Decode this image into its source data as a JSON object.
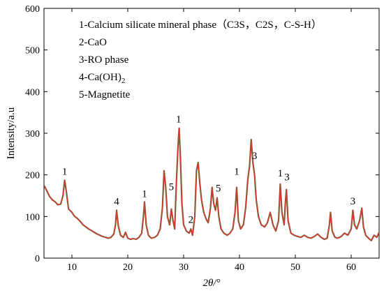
{
  "chart_data": {
    "type": "line",
    "xlabel": "2θ/°",
    "ylabel": "Intensity/a.u",
    "xlim": [
      5,
      65
    ],
    "ylim": [
      0,
      600
    ],
    "xticks": [
      10,
      20,
      30,
      40,
      50,
      60
    ],
    "yticks": [
      0,
      100,
      200,
      300,
      400,
      500,
      600
    ],
    "grid": false,
    "legend_position": "top-right",
    "legend": [
      {
        "id": "1",
        "text": "1-Calcium silicate mineral phase（C3S，C2S，C-S-H）"
      },
      {
        "id": "2",
        "text": "2-CaO"
      },
      {
        "id": "3",
        "text": "3-RO phase"
      },
      {
        "id": "4",
        "text": "4-Ca(OH)",
        "subscript": "2"
      },
      {
        "id": "5",
        "text": "5-Magnetite"
      }
    ],
    "line_color": "#e8322e",
    "line_color_dark": "#5a4a18",
    "peak_labels": [
      {
        "label": "1",
        "x": 8.7,
        "y": 200
      },
      {
        "label": "4",
        "x": 18.0,
        "y": 128
      },
      {
        "label": "1",
        "x": 23.0,
        "y": 147
      },
      {
        "label": "5",
        "x": 27.8,
        "y": 163
      },
      {
        "label": "1",
        "x": 29.1,
        "y": 326
      },
      {
        "label": "2",
        "x": 31.3,
        "y": 85
      },
      {
        "label": "5",
        "x": 36.2,
        "y": 160
      },
      {
        "label": "1",
        "x": 39.5,
        "y": 200
      },
      {
        "label": "3",
        "x": 42.7,
        "y": 238
      },
      {
        "label": "1",
        "x": 47.3,
        "y": 196
      },
      {
        "label": "3",
        "x": 48.5,
        "y": 187
      },
      {
        "label": "3",
        "x": 60.3,
        "y": 129
      }
    ],
    "series": [
      {
        "points": [
          [
            5.0,
            175
          ],
          [
            5.5,
            162
          ],
          [
            6.0,
            148
          ],
          [
            6.5,
            140
          ],
          [
            7.0,
            135
          ],
          [
            7.5,
            128
          ],
          [
            8.0,
            130
          ],
          [
            8.4,
            150
          ],
          [
            8.7,
            187
          ],
          [
            9.0,
            160
          ],
          [
            9.4,
            118
          ],
          [
            10.0,
            110
          ],
          [
            10.5,
            100
          ],
          [
            11.0,
            95
          ],
          [
            11.5,
            88
          ],
          [
            12.0,
            80
          ],
          [
            12.5,
            75
          ],
          [
            13.0,
            70
          ],
          [
            13.5,
            66
          ],
          [
            14.0,
            62
          ],
          [
            14.5,
            58
          ],
          [
            15.0,
            55
          ],
          [
            15.5,
            52
          ],
          [
            16.0,
            50
          ],
          [
            16.5,
            48
          ],
          [
            17.0,
            50
          ],
          [
            17.5,
            58
          ],
          [
            17.8,
            80
          ],
          [
            18.0,
            115
          ],
          [
            18.3,
            78
          ],
          [
            18.7,
            55
          ],
          [
            19.2,
            50
          ],
          [
            19.6,
            62
          ],
          [
            20.0,
            48
          ],
          [
            20.5,
            45
          ],
          [
            21.0,
            47
          ],
          [
            21.5,
            45
          ],
          [
            22.0,
            50
          ],
          [
            22.5,
            60
          ],
          [
            22.8,
            100
          ],
          [
            23.0,
            135
          ],
          [
            23.3,
            80
          ],
          [
            23.7,
            55
          ],
          [
            24.2,
            48
          ],
          [
            24.8,
            50
          ],
          [
            25.3,
            55
          ],
          [
            25.8,
            70
          ],
          [
            26.2,
            120
          ],
          [
            26.5,
            210
          ],
          [
            26.8,
            170
          ],
          [
            27.1,
            100
          ],
          [
            27.5,
            80
          ],
          [
            27.8,
            118
          ],
          [
            28.1,
            90
          ],
          [
            28.4,
            70
          ],
          [
            28.7,
            180
          ],
          [
            29.0,
            270
          ],
          [
            29.2,
            312
          ],
          [
            29.4,
            250
          ],
          [
            29.7,
            130
          ],
          [
            30.0,
            80
          ],
          [
            30.5,
            65
          ],
          [
            31.0,
            60
          ],
          [
            31.3,
            70
          ],
          [
            31.6,
            55
          ],
          [
            32.0,
            100
          ],
          [
            32.3,
            210
          ],
          [
            32.6,
            230
          ],
          [
            32.9,
            180
          ],
          [
            33.2,
            140
          ],
          [
            33.6,
            110
          ],
          [
            34.0,
            95
          ],
          [
            34.4,
            85
          ],
          [
            34.8,
            120
          ],
          [
            35.1,
            170
          ],
          [
            35.4,
            130
          ],
          [
            35.7,
            115
          ],
          [
            36.0,
            145
          ],
          [
            36.3,
            100
          ],
          [
            36.7,
            70
          ],
          [
            37.2,
            60
          ],
          [
            37.8,
            55
          ],
          [
            38.3,
            60
          ],
          [
            38.8,
            70
          ],
          [
            39.2,
            110
          ],
          [
            39.5,
            170
          ],
          [
            39.8,
            90
          ],
          [
            40.2,
            70
          ],
          [
            40.7,
            80
          ],
          [
            41.1,
            120
          ],
          [
            41.5,
            190
          ],
          [
            41.8,
            220
          ],
          [
            42.1,
            285
          ],
          [
            42.4,
            230
          ],
          [
            42.7,
            200
          ],
          [
            43.0,
            140
          ],
          [
            43.4,
            100
          ],
          [
            43.9,
            80
          ],
          [
            44.5,
            75
          ],
          [
            45.0,
            85
          ],
          [
            45.5,
            110
          ],
          [
            46.0,
            80
          ],
          [
            46.5,
            65
          ],
          [
            47.0,
            90
          ],
          [
            47.3,
            178
          ],
          [
            47.6,
            110
          ],
          [
            48.0,
            80
          ],
          [
            48.2,
            130
          ],
          [
            48.4,
            165
          ],
          [
            48.7,
            90
          ],
          [
            49.2,
            60
          ],
          [
            49.8,
            55
          ],
          [
            50.4,
            52
          ],
          [
            51.0,
            50
          ],
          [
            51.6,
            55
          ],
          [
            52.2,
            50
          ],
          [
            52.8,
            48
          ],
          [
            53.4,
            52
          ],
          [
            54.0,
            58
          ],
          [
            54.6,
            50
          ],
          [
            55.2,
            45
          ],
          [
            55.7,
            48
          ],
          [
            56.1,
            80
          ],
          [
            56.3,
            110
          ],
          [
            56.6,
            65
          ],
          [
            57.1,
            50
          ],
          [
            57.6,
            48
          ],
          [
            58.2,
            52
          ],
          [
            58.8,
            60
          ],
          [
            59.4,
            55
          ],
          [
            60.0,
            70
          ],
          [
            60.3,
            115
          ],
          [
            60.6,
            80
          ],
          [
            61.0,
            70
          ],
          [
            61.5,
            90
          ],
          [
            61.9,
            120
          ],
          [
            62.2,
            75
          ],
          [
            62.6,
            55
          ],
          [
            63.1,
            48
          ],
          [
            63.6,
            42
          ],
          [
            64.1,
            55
          ],
          [
            64.6,
            50
          ],
          [
            65.0,
            62
          ]
        ]
      }
    ]
  }
}
